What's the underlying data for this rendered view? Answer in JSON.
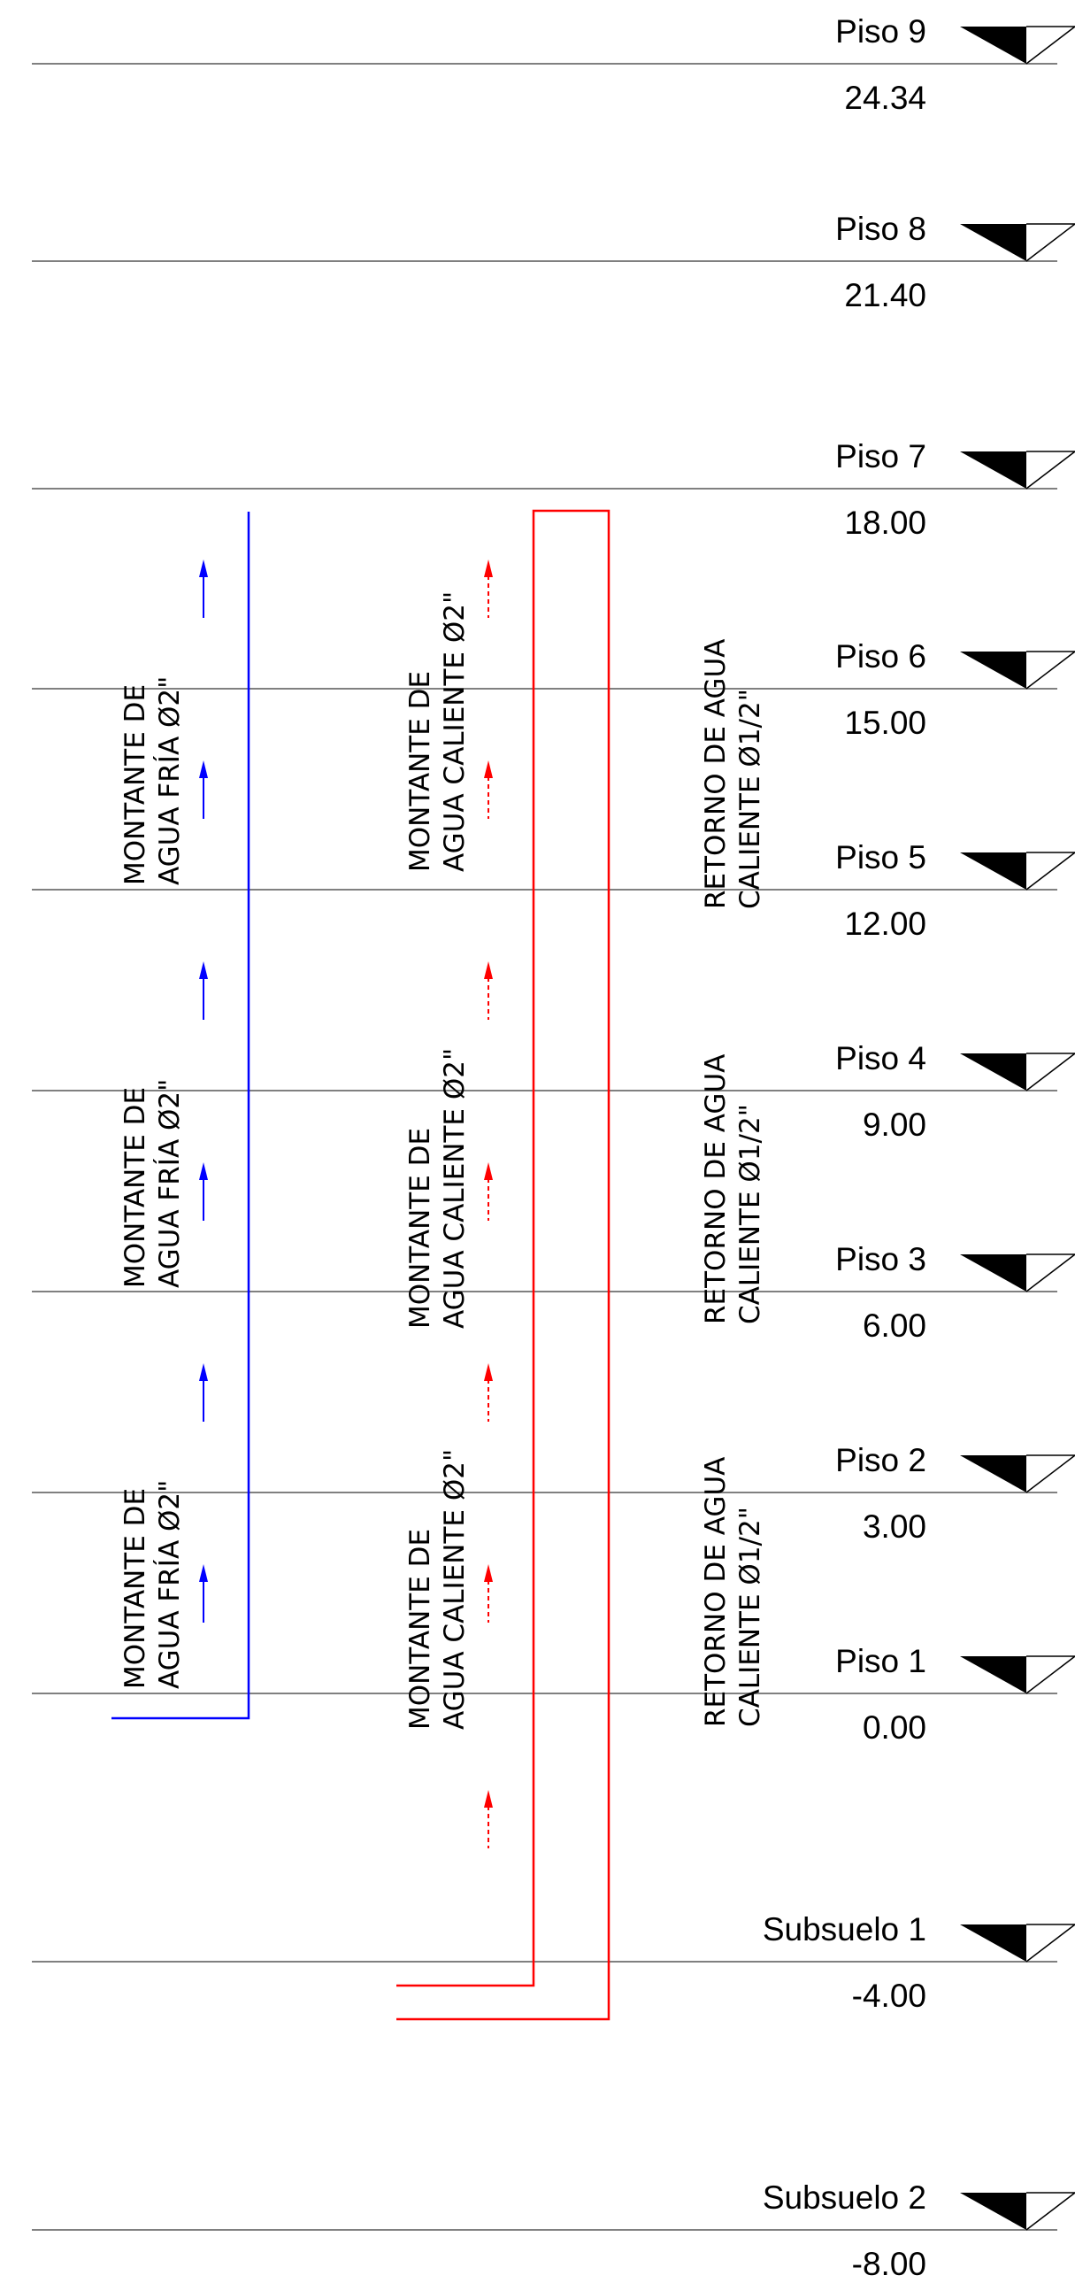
{
  "colors": {
    "cold_water": "#0000ff",
    "hot_water": "#ff0000",
    "level_line": "#808080",
    "text": "#000000"
  },
  "levels": [
    {
      "name": "Piso 9",
      "elevation": "24.34"
    },
    {
      "name": "Piso 8",
      "elevation": "21.40"
    },
    {
      "name": "Piso 7",
      "elevation": "18.00"
    },
    {
      "name": "Piso 6",
      "elevation": "15.00"
    },
    {
      "name": "Piso 5",
      "elevation": "12.00"
    },
    {
      "name": "Piso 4",
      "elevation": "9.00"
    },
    {
      "name": "Piso 3",
      "elevation": "6.00"
    },
    {
      "name": "Piso 2",
      "elevation": "3.00"
    },
    {
      "name": "Piso 1",
      "elevation": "0.00"
    },
    {
      "name": "Subsuelo 1",
      "elevation": "-4.00"
    },
    {
      "name": "Subsuelo 2",
      "elevation": "-8.00"
    }
  ],
  "labels": {
    "cold_riser": [
      "MONTANTE DE",
      "AGUA FRÍA Ø2\""
    ],
    "hot_riser": [
      "MONTANTE DE",
      "AGUA CALIENTE Ø2\""
    ],
    "hot_return": [
      "RETORNO DE AGUA",
      "CALIENTE Ø1/2\""
    ]
  },
  "level_marker_icon": "level-triangle-icon",
  "flow_arrow_icon": "flow-arrow-icon"
}
